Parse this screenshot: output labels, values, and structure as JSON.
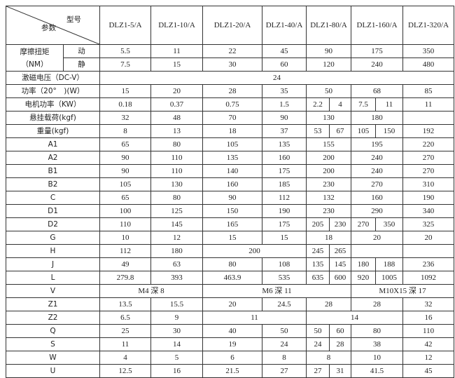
{
  "header": {
    "corner_top": "型号",
    "corner_bottom": "参数",
    "models": [
      "DLZ1-5/A",
      "DLZ1-10/A",
      "DLZ1-20/A",
      "DLZ1-40/A",
      "DLZ1-80/A",
      "DLZ1-160/A",
      "DLZ1-320/A"
    ]
  },
  "torque": {
    "label": "摩擦扭矩",
    "unit": "（NM）",
    "dynamic": {
      "label": "动",
      "cells": [
        {
          "v": "5.5",
          "s": 1
        },
        {
          "v": "11",
          "s": 1
        },
        {
          "v": "22",
          "s": 1
        },
        {
          "v": "45",
          "s": 1
        },
        {
          "v": "90",
          "s": 2
        },
        {
          "v": "175",
          "s": 2
        },
        {
          "v": "350",
          "s": 1
        }
      ]
    },
    "static": {
      "label": "静",
      "cells": [
        {
          "v": "7.5",
          "s": 1
        },
        {
          "v": "15",
          "s": 1
        },
        {
          "v": "30",
          "s": 1
        },
        {
          "v": "60",
          "s": 1
        },
        {
          "v": "120",
          "s": 2
        },
        {
          "v": "240",
          "s": 2
        },
        {
          "v": "480",
          "s": 1
        }
      ]
    }
  },
  "rows": [
    {
      "label": "激磁电压（DC-V）",
      "cells": [
        {
          "v": "24",
          "s": 9
        }
      ]
    },
    {
      "label": "功率（20°　)(W）",
      "cells": [
        {
          "v": "15",
          "s": 1
        },
        {
          "v": "20",
          "s": 1
        },
        {
          "v": "28",
          "s": 1
        },
        {
          "v": "35",
          "s": 1
        },
        {
          "v": "50",
          "s": 2
        },
        {
          "v": "68",
          "s": 2
        },
        {
          "v": "85",
          "s": 1
        }
      ]
    },
    {
      "label": "电机功率（KW）",
      "cells": [
        {
          "v": "0.18",
          "s": 1
        },
        {
          "v": "0.37",
          "s": 1
        },
        {
          "v": "0.75",
          "s": 1
        },
        {
          "v": "1.5",
          "s": 1
        },
        {
          "v": "2.2",
          "s": 1
        },
        {
          "v": "4",
          "s": 1
        },
        {
          "v": "7.5",
          "s": 1
        },
        {
          "v": "11",
          "s": 1
        },
        {
          "v": "11",
          "s": 1
        }
      ]
    },
    {
      "label": "悬挂载荷(kgf)",
      "cells": [
        {
          "v": "32",
          "s": 1
        },
        {
          "v": "48",
          "s": 1
        },
        {
          "v": "70",
          "s": 1
        },
        {
          "v": "90",
          "s": 1
        },
        {
          "v": "130",
          "s": 2
        },
        {
          "v": "180",
          "s": 2
        },
        {
          "v": "",
          "s": 1
        }
      ]
    },
    {
      "label": "重量(kgf)",
      "cells": [
        {
          "v": "8",
          "s": 1
        },
        {
          "v": "13",
          "s": 1
        },
        {
          "v": "18",
          "s": 1
        },
        {
          "v": "37",
          "s": 1
        },
        {
          "v": "53",
          "s": 1
        },
        {
          "v": "67",
          "s": 1
        },
        {
          "v": "105",
          "s": 1
        },
        {
          "v": "150",
          "s": 1
        },
        {
          "v": "192",
          "s": 1
        }
      ]
    },
    {
      "label": "A1",
      "cells": [
        {
          "v": "65",
          "s": 1
        },
        {
          "v": "80",
          "s": 1
        },
        {
          "v": "105",
          "s": 1
        },
        {
          "v": "135",
          "s": 1
        },
        {
          "v": "155",
          "s": 2
        },
        {
          "v": "195",
          "s": 2
        },
        {
          "v": "220",
          "s": 1
        }
      ]
    },
    {
      "label": "A2",
      "cells": [
        {
          "v": "90",
          "s": 1
        },
        {
          "v": "110",
          "s": 1
        },
        {
          "v": "135",
          "s": 1
        },
        {
          "v": "160",
          "s": 1
        },
        {
          "v": "200",
          "s": 2
        },
        {
          "v": "240",
          "s": 2
        },
        {
          "v": "270",
          "s": 1
        }
      ]
    },
    {
      "label": "B1",
      "cells": [
        {
          "v": "90",
          "s": 1
        },
        {
          "v": "110",
          "s": 1
        },
        {
          "v": "140",
          "s": 1
        },
        {
          "v": "175",
          "s": 1
        },
        {
          "v": "200",
          "s": 2
        },
        {
          "v": "240",
          "s": 2
        },
        {
          "v": "270",
          "s": 1
        }
      ]
    },
    {
      "label": "B2",
      "cells": [
        {
          "v": "105",
          "s": 1
        },
        {
          "v": "130",
          "s": 1
        },
        {
          "v": "160",
          "s": 1
        },
        {
          "v": "185",
          "s": 1
        },
        {
          "v": "230",
          "s": 2
        },
        {
          "v": "270",
          "s": 2
        },
        {
          "v": "310",
          "s": 1
        }
      ]
    },
    {
      "label": "C",
      "cells": [
        {
          "v": "65",
          "s": 1
        },
        {
          "v": "80",
          "s": 1
        },
        {
          "v": "90",
          "s": 1
        },
        {
          "v": "112",
          "s": 1
        },
        {
          "v": "132",
          "s": 2
        },
        {
          "v": "160",
          "s": 2
        },
        {
          "v": "190",
          "s": 1
        }
      ]
    },
    {
      "label": "D1",
      "cells": [
        {
          "v": "100",
          "s": 1
        },
        {
          "v": "125",
          "s": 1
        },
        {
          "v": "150",
          "s": 1
        },
        {
          "v": "190",
          "s": 1
        },
        {
          "v": "230",
          "s": 2
        },
        {
          "v": "290",
          "s": 2
        },
        {
          "v": "340",
          "s": 1
        }
      ]
    },
    {
      "label": "D2",
      "cells": [
        {
          "v": "110",
          "s": 1
        },
        {
          "v": "145",
          "s": 1
        },
        {
          "v": "165",
          "s": 1
        },
        {
          "v": "175",
          "s": 1
        },
        {
          "v": "205",
          "s": 1
        },
        {
          "v": "230",
          "s": 1
        },
        {
          "v": "270",
          "s": 1
        },
        {
          "v": "350",
          "s": 1
        },
        {
          "v": "325",
          "s": 1
        }
      ]
    },
    {
      "label": "G",
      "cells": [
        {
          "v": "10",
          "s": 1
        },
        {
          "v": "12",
          "s": 1
        },
        {
          "v": "15",
          "s": 1
        },
        {
          "v": "15",
          "s": 1
        },
        {
          "v": "18",
          "s": 2
        },
        {
          "v": "20",
          "s": 2
        },
        {
          "v": "20",
          "s": 1
        }
      ]
    },
    {
      "label": "H",
      "cells": [
        {
          "v": "112",
          "s": 1
        },
        {
          "v": "180",
          "s": 1
        },
        {
          "v": "200",
          "s": 2
        },
        {
          "v": "245",
          "s": 1
        },
        {
          "v": "265",
          "s": 1
        },
        {
          "v": "",
          "s": 2
        },
        {
          "v": "",
          "s": 1
        }
      ]
    },
    {
      "label": "J",
      "cells": [
        {
          "v": "49",
          "s": 1
        },
        {
          "v": "63",
          "s": 1
        },
        {
          "v": "80",
          "s": 1
        },
        {
          "v": "108",
          "s": 1
        },
        {
          "v": "135",
          "s": 1
        },
        {
          "v": "145",
          "s": 1
        },
        {
          "v": "180",
          "s": 1
        },
        {
          "v": "188",
          "s": 1
        },
        {
          "v": "236",
          "s": 1
        }
      ]
    },
    {
      "label": "L",
      "cells": [
        {
          "v": "279.8",
          "s": 1
        },
        {
          "v": "393",
          "s": 1
        },
        {
          "v": "463.9",
          "s": 1
        },
        {
          "v": "535",
          "s": 1
        },
        {
          "v": "635",
          "s": 1
        },
        {
          "v": "600",
          "s": 1
        },
        {
          "v": "920",
          "s": 1
        },
        {
          "v": "1005",
          "s": 1
        },
        {
          "v": "1092",
          "s": 1
        }
      ]
    },
    {
      "label": "V",
      "cells": [
        {
          "v": "M4 深 8",
          "s": 2
        },
        {
          "v": "M6 深 11",
          "s": 4
        },
        {
          "v": "M10X15 深 17",
          "s": 3
        }
      ]
    },
    {
      "label": "Z1",
      "cells": [
        {
          "v": "13.5",
          "s": 1
        },
        {
          "v": "15.5",
          "s": 1
        },
        {
          "v": "20",
          "s": 1
        },
        {
          "v": "24.5",
          "s": 1
        },
        {
          "v": "28",
          "s": 2
        },
        {
          "v": "28",
          "s": 2
        },
        {
          "v": "32",
          "s": 1
        }
      ]
    },
    {
      "label": "Z2",
      "cells": [
        {
          "v": "6.5",
          "s": 1
        },
        {
          "v": "9",
          "s": 1
        },
        {
          "v": "11",
          "s": 2
        },
        {
          "v": "14",
          "s": 4
        },
        {
          "v": "16",
          "s": 1
        }
      ]
    },
    {
      "label": "Q",
      "cells": [
        {
          "v": "25",
          "s": 1
        },
        {
          "v": "30",
          "s": 1
        },
        {
          "v": "40",
          "s": 1
        },
        {
          "v": "50",
          "s": 1
        },
        {
          "v": "50",
          "s": 1
        },
        {
          "v": "60",
          "s": 1
        },
        {
          "v": "80",
          "s": 2
        },
        {
          "v": "110",
          "s": 1
        }
      ]
    },
    {
      "label": "S",
      "cells": [
        {
          "v": "11",
          "s": 1
        },
        {
          "v": "14",
          "s": 1
        },
        {
          "v": "19",
          "s": 1
        },
        {
          "v": "24",
          "s": 1
        },
        {
          "v": "24",
          "s": 1
        },
        {
          "v": "28",
          "s": 1
        },
        {
          "v": "38",
          "s": 2
        },
        {
          "v": "42",
          "s": 1
        }
      ]
    },
    {
      "label": "W",
      "cells": [
        {
          "v": "4",
          "s": 1
        },
        {
          "v": "5",
          "s": 1
        },
        {
          "v": "6",
          "s": 1
        },
        {
          "v": "8",
          "s": 1
        },
        {
          "v": "8",
          "s": 2
        },
        {
          "v": "10",
          "s": 2
        },
        {
          "v": "12",
          "s": 1
        }
      ]
    },
    {
      "label": "U",
      "cells": [
        {
          "v": "12.5",
          "s": 1
        },
        {
          "v": "16",
          "s": 1
        },
        {
          "v": "21.5",
          "s": 1
        },
        {
          "v": "27",
          "s": 1
        },
        {
          "v": "27",
          "s": 1
        },
        {
          "v": "31",
          "s": 1
        },
        {
          "v": "41.5",
          "s": 2
        },
        {
          "v": "45",
          "s": 1
        }
      ]
    }
  ]
}
